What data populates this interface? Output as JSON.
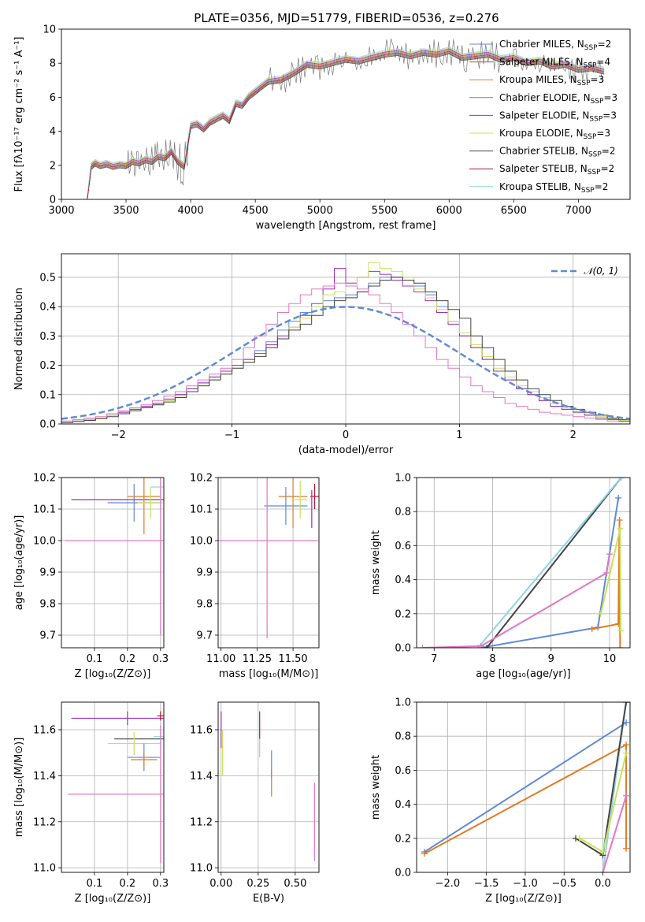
{
  "figure": {
    "title": "PLATE=0356, MJD=51779, FIBERID=0536, z=0.276"
  },
  "colors": {
    "Chabrier MILES": "#5f8ad6",
    "Salpeter MILES": "#a05a2c",
    "Kroupa MILES": "#e07b25",
    "Chabrier ELODIE": "#7a7a7a",
    "Salpeter ELODIE": "#9a2fb8",
    "Kroupa ELODIE": "#c9e05a",
    "Chabrier STELIB": "#444444",
    "Salpeter STELIB": "#b5172a",
    "Kroupa STELIB": "#8fd3e8",
    "pink": "#e377c2",
    "normal": "#5f8ad6"
  },
  "chart_data": [
    {
      "id": "spectrum",
      "type": "line",
      "title": "PLATE=0356, MJD=51779, FIBERID=0536, z=0.276",
      "xlabel": "wavelength [Angstrom, rest frame]",
      "ylabel": "Flux [fλ10⁻¹⁷ erg cm⁻² s⁻¹ A⁻¹]",
      "xlim": [
        3000,
        7400
      ],
      "ylim": [
        0,
        10
      ],
      "xticks": [
        "3000",
        "3500",
        "4000",
        "4500",
        "5000",
        "5500",
        "6000",
        "6500",
        "7000"
      ],
      "yticks": [
        "0",
        "2",
        "4",
        "6",
        "8",
        "10"
      ],
      "legend_position": "top-right",
      "data_spectrum": {
        "name": "data",
        "x": [
          3200,
          3230,
          3260,
          3300,
          3350,
          3400,
          3450,
          3500,
          3550,
          3600,
          3650,
          3700,
          3750,
          3800,
          3850,
          3900,
          3950,
          4000,
          4050,
          4100,
          4150,
          4200,
          4250,
          4300,
          4350,
          4400,
          4450,
          4500,
          4600,
          4700,
          4800,
          4900,
          5000,
          5100,
          5200,
          5300,
          5400,
          5500,
          5600,
          5700,
          5800,
          5900,
          6000,
          6100,
          6200,
          6300,
          6400,
          6500,
          6600,
          6700,
          6800,
          6900,
          7000,
          7100,
          7200
        ],
        "y": [
          0,
          1.9,
          2.1,
          1.95,
          2.05,
          1.9,
          2.0,
          1.95,
          2.2,
          2.1,
          2.3,
          2.2,
          2.5,
          2.4,
          2.8,
          2.2,
          1.9,
          4.3,
          4.4,
          4.1,
          4.5,
          4.7,
          4.9,
          4.6,
          5.6,
          5.5,
          6.0,
          6.3,
          6.9,
          7.0,
          7.4,
          7.9,
          7.8,
          8.0,
          8.2,
          8.1,
          8.3,
          8.5,
          8.6,
          8.4,
          8.6,
          8.5,
          8.7,
          8.3,
          8.4,
          8.5,
          8.2,
          8.3,
          8.0,
          8.1,
          7.8,
          7.9,
          7.6,
          7.7,
          7.5
        ]
      },
      "models": [
        {
          "name": "Chabrier MILES, N_SSP=2",
          "offset": 0.05
        },
        {
          "name": "Salpeter MILES, N_SSP=4",
          "offset": -0.1
        },
        {
          "name": "Kroupa MILES, N_SSP=3",
          "offset": 0.1
        },
        {
          "name": "Chabrier ELODIE, N_SSP=3",
          "offset": -0.05
        },
        {
          "name": "Salpeter ELODIE, N_SSP=3",
          "offset": 0.15
        },
        {
          "name": "Kroupa ELODIE, N_SSP=3",
          "offset": 0.2
        },
        {
          "name": "Chabrier STELIB, N_SSP=2",
          "offset": -0.15
        },
        {
          "name": "Salpeter STELIB, N_SSP=2",
          "offset": 0.0
        },
        {
          "name": "Kroupa STELIB, N_SSP=2",
          "offset": 0.25
        }
      ],
      "legend_labels": [
        "Chabrier MILES, N",
        "Salpeter MILES, N",
        "Kroupa MILES, N",
        "Chabrier ELODIE, N",
        "Salpeter ELODIE, N",
        "Kroupa ELODIE, N",
        "Chabrier STELIB, N",
        "Salpeter STELIB, N",
        "Kroupa STELIB, N"
      ],
      "legend_sub": "SSP",
      "legend_counts": [
        "=2",
        "=4",
        "=3",
        "=3",
        "=3",
        "=3",
        "=2",
        "=2",
        "=2"
      ]
    },
    {
      "id": "residuals",
      "type": "bar",
      "xlabel": "(data-model)/error",
      "ylabel": "Normed distribution",
      "xlim": [
        -2.5,
        2.5
      ],
      "ylim": [
        0,
        0.58
      ],
      "xticks": [
        "−2",
        "−1",
        "0",
        "1",
        "2"
      ],
      "yticks": [
        "0.0",
        "0.1",
        "0.2",
        "0.3",
        "0.4",
        "0.5"
      ],
      "legend_position": "top-right",
      "legend_label": "𝒩(0, 1)",
      "bins": [
        -2.5,
        -2.4,
        -2.3,
        -2.2,
        -2.1,
        -2.0,
        -1.9,
        -1.8,
        -1.7,
        -1.6,
        -1.5,
        -1.4,
        -1.3,
        -1.2,
        -1.1,
        -1.0,
        -0.9,
        -0.8,
        -0.7,
        -0.6,
        -0.5,
        -0.4,
        -0.3,
        -0.2,
        -0.1,
        0.0,
        0.1,
        0.2,
        0.3,
        0.4,
        0.5,
        0.6,
        0.7,
        0.8,
        0.9,
        1.0,
        1.1,
        1.2,
        1.3,
        1.4,
        1.5,
        1.6,
        1.7,
        1.8,
        1.9,
        2.0,
        2.1,
        2.2,
        2.3,
        2.4
      ],
      "series": [
        {
          "name": "Chabrier MILES",
          "values": [
            0.005,
            0.01,
            0.015,
            0.02,
            0.03,
            0.04,
            0.05,
            0.06,
            0.07,
            0.08,
            0.1,
            0.12,
            0.14,
            0.16,
            0.18,
            0.2,
            0.22,
            0.25,
            0.28,
            0.32,
            0.35,
            0.38,
            0.4,
            0.42,
            0.43,
            0.44,
            0.45,
            0.48,
            0.5,
            0.5,
            0.49,
            0.47,
            0.44,
            0.4,
            0.35,
            0.3,
            0.26,
            0.22,
            0.18,
            0.15,
            0.12,
            0.1,
            0.08,
            0.06,
            0.05,
            0.04,
            0.03,
            0.02,
            0.015,
            0.01
          ]
        },
        {
          "name": "Salpeter ELODIE",
          "values": [
            0.005,
            0.01,
            0.015,
            0.02,
            0.03,
            0.04,
            0.05,
            0.06,
            0.07,
            0.085,
            0.1,
            0.12,
            0.14,
            0.16,
            0.18,
            0.2,
            0.22,
            0.24,
            0.27,
            0.3,
            0.33,
            0.37,
            0.41,
            0.46,
            0.53,
            0.48,
            0.5,
            0.52,
            0.51,
            0.49,
            0.47,
            0.45,
            0.42,
            0.38,
            0.34,
            0.3,
            0.26,
            0.22,
            0.18,
            0.15,
            0.12,
            0.1,
            0.08,
            0.06,
            0.05,
            0.04,
            0.03,
            0.02,
            0.015,
            0.01
          ]
        },
        {
          "name": "Kroupa ELODIE",
          "values": [
            0.005,
            0.01,
            0.015,
            0.02,
            0.03,
            0.035,
            0.045,
            0.055,
            0.065,
            0.08,
            0.095,
            0.11,
            0.13,
            0.15,
            0.17,
            0.19,
            0.21,
            0.23,
            0.26,
            0.29,
            0.33,
            0.36,
            0.4,
            0.44,
            0.45,
            0.47,
            0.5,
            0.55,
            0.53,
            0.52,
            0.5,
            0.46,
            0.43,
            0.39,
            0.35,
            0.31,
            0.27,
            0.23,
            0.19,
            0.16,
            0.13,
            0.11,
            0.09,
            0.07,
            0.055,
            0.045,
            0.035,
            0.025,
            0.018,
            0.012
          ]
        },
        {
          "name": "Chabrier STELIB",
          "values": [
            0.005,
            0.008,
            0.012,
            0.018,
            0.025,
            0.035,
            0.045,
            0.055,
            0.065,
            0.075,
            0.09,
            0.11,
            0.13,
            0.15,
            0.17,
            0.19,
            0.21,
            0.23,
            0.26,
            0.29,
            0.32,
            0.34,
            0.37,
            0.4,
            0.42,
            0.43,
            0.45,
            0.47,
            0.49,
            0.5,
            0.49,
            0.48,
            0.45,
            0.42,
            0.39,
            0.36,
            0.3,
            0.26,
            0.22,
            0.18,
            0.15,
            0.12,
            0.1,
            0.08,
            0.06,
            0.05,
            0.04,
            0.03,
            0.02,
            0.015
          ]
        },
        {
          "name": "pink",
          "values": [
            0.01,
            0.015,
            0.02,
            0.025,
            0.035,
            0.045,
            0.055,
            0.065,
            0.08,
            0.095,
            0.11,
            0.13,
            0.15,
            0.17,
            0.19,
            0.22,
            0.26,
            0.3,
            0.34,
            0.38,
            0.41,
            0.44,
            0.46,
            0.47,
            0.48,
            0.47,
            0.46,
            0.44,
            0.41,
            0.38,
            0.34,
            0.3,
            0.26,
            0.22,
            0.19,
            0.16,
            0.13,
            0.11,
            0.09,
            0.07,
            0.06,
            0.05,
            0.04,
            0.035,
            0.03,
            0.025,
            0.02,
            0.015,
            0.01,
            0.008
          ]
        }
      ],
      "normal_curve": {
        "name": "N(0,1)",
        "mu": 0,
        "sigma": 1
      }
    },
    {
      "id": "age_vs_Z",
      "type": "scatter",
      "xlabel": "Z [log₁₀(Z/Z⊙)]",
      "ylabel": "age  [log₁₀(age/yr)]",
      "xlim": [
        0.0,
        0.31
      ],
      "ylim": [
        9.66,
        10.2
      ],
      "xticks": [
        "0.1",
        "0.2",
        "0.3"
      ],
      "yticks": [
        "9.7",
        "9.8",
        "9.9",
        "10.0",
        "10.1",
        "10.2"
      ],
      "points": [
        {
          "name": "Chabrier MILES",
          "x": 0.22,
          "y": 10.12,
          "xerr": 0.08,
          "yerr": 0.06
        },
        {
          "name": "Salpeter ELODIE",
          "x": 0.2,
          "y": 10.13,
          "xerr": 0.17,
          "yerr": 0.0
        },
        {
          "name": "Kroupa MILES",
          "x": 0.25,
          "y": 10.14,
          "xerr": 0.05,
          "yerr": 0.12
        },
        {
          "name": "Kroupa ELODIE",
          "x": 0.27,
          "y": 10.12,
          "xerr": 0.04,
          "yerr": 0.05
        },
        {
          "name": "Kroupa STELIB",
          "x": 0.3,
          "y": 10.17,
          "xerr": 0.03,
          "yerr": 0.08
        },
        {
          "name": "pink",
          "x": 0.3,
          "y": 10.0,
          "xerr": 0.29,
          "yerr": 0.3
        }
      ]
    },
    {
      "id": "age_vs_mass",
      "type": "scatter",
      "xlabel": "mass [log₁₀(M/M⊙)]",
      "ylabel": "",
      "xlim": [
        10.98,
        11.68
      ],
      "ylim": [
        9.66,
        10.2
      ],
      "xticks": [
        "11.00",
        "11.25",
        "11.50"
      ],
      "yticks": [
        "9.7",
        "9.8",
        "9.9",
        "10.0",
        "10.1",
        "10.2"
      ],
      "points": [
        {
          "name": "Chabrier MILES",
          "x": 11.45,
          "y": 10.11,
          "xerr": 0.15,
          "yerr": 0.06
        },
        {
          "name": "Kroupa MILES",
          "x": 11.5,
          "y": 10.14,
          "xerr": 0.1,
          "yerr": 0.1
        },
        {
          "name": "Kroupa ELODIE",
          "x": 11.55,
          "y": 10.13,
          "xerr": 0.05,
          "yerr": 0.06
        },
        {
          "name": "Salpeter STELIB",
          "x": 11.65,
          "y": 10.14,
          "xerr": 0.03,
          "yerr": 0.04
        },
        {
          "name": "Salpeter ELODIE",
          "x": 11.63,
          "y": 10.1,
          "xerr": 0.0,
          "yerr": 0.06
        },
        {
          "name": "pink",
          "x": 11.32,
          "y": 10.0,
          "xerr": 0.35,
          "yerr": 0.31
        }
      ]
    },
    {
      "id": "weight_vs_age",
      "type": "line",
      "xlabel": "age  [log₁₀(age/yr)]",
      "ylabel": "mass weight",
      "xlim": [
        6.7,
        10.35
      ],
      "ylim": [
        0,
        1.0
      ],
      "xticks": [
        "7",
        "8",
        "9",
        "10"
      ],
      "yticks": [
        "0.0",
        "0.2",
        "0.4",
        "0.6",
        "0.8",
        "1.0"
      ],
      "series": [
        {
          "name": "Chabrier MILES",
          "x": [
            7.8,
            9.8,
            10.15
          ],
          "y": [
            0.0,
            0.12,
            0.88
          ]
        },
        {
          "name": "Kroupa MILES",
          "x": [
            9.7,
            10.15,
            10.17,
            10.18
          ],
          "y": [
            0.11,
            0.14,
            0.75,
            0.0
          ]
        },
        {
          "name": "Chabrier STELIB",
          "x": [
            7.9,
            10.2
          ],
          "y": [
            0.0,
            1.0
          ]
        },
        {
          "name": "Kroupa STELIB",
          "x": [
            7.75,
            10.2
          ],
          "y": [
            0.0,
            1.0
          ]
        },
        {
          "name": "pink",
          "x": [
            6.8,
            7.8,
            9.95,
            10.0
          ],
          "y": [
            0.0,
            0.01,
            0.44,
            0.55
          ]
        },
        {
          "name": "Kroupa ELODIE",
          "x": [
            9.85,
            10.18,
            10.19
          ],
          "y": [
            0.2,
            0.7,
            0.1
          ]
        }
      ]
    },
    {
      "id": "mass_vs_Z",
      "type": "scatter",
      "xlabel": "Z [log₁₀(Z/Z⊙)]",
      "ylabel": "mass [log₁₀(M/M⊙)]",
      "xlim": [
        0.0,
        0.31
      ],
      "ylim": [
        10.98,
        11.72
      ],
      "xticks": [
        "0.1",
        "0.2",
        "0.3"
      ],
      "yticks": [
        "11.0",
        "11.2",
        "11.4",
        "11.6"
      ],
      "points": [
        {
          "name": "Salpeter ELODIE",
          "x": 0.2,
          "y": 11.65,
          "xerr": 0.17,
          "yerr": 0.03
        },
        {
          "name": "Salpeter STELIB",
          "x": 0.3,
          "y": 11.66,
          "xerr": 0.01,
          "yerr": 0.02
        },
        {
          "name": "Chabrier STELIB",
          "x": 0.28,
          "y": 11.56,
          "xerr": 0.12,
          "yerr": 0.0
        },
        {
          "name": "Kroupa ELODIE",
          "x": 0.22,
          "y": 11.54,
          "xerr": 0.08,
          "yerr": 0.05
        },
        {
          "name": "Chabrier MILES",
          "x": 0.25,
          "y": 11.48,
          "xerr": 0.05,
          "yerr": 0.06
        },
        {
          "name": "Kroupa MILES",
          "x": 0.25,
          "y": 11.47,
          "xerr": 0.04,
          "yerr": 0.03
        },
        {
          "name": "Kroupa STELIB",
          "x": 0.3,
          "y": 11.57,
          "xerr": 0.02,
          "yerr": 0.06
        },
        {
          "name": "pink",
          "x": 0.3,
          "y": 11.32,
          "xerr": 0.28,
          "yerr": 0.3
        }
      ]
    },
    {
      "id": "mass_vs_EBV",
      "type": "scatter",
      "xlabel": "E(B-V)",
      "ylabel": "",
      "xlim": [
        -0.02,
        0.66
      ],
      "ylim": [
        10.98,
        11.72
      ],
      "xticks": [
        "0.00",
        "0.25",
        "0.50"
      ],
      "yticks": [
        "11.0",
        "11.2",
        "11.4",
        "11.6"
      ],
      "points": [
        {
          "name": "Salpeter ELODIE",
          "x": 0.0,
          "y": 11.6,
          "xerr": 0.0,
          "yerr": 0.08
        },
        {
          "name": "Kroupa ELODIE",
          "x": 0.01,
          "y": 11.5,
          "xerr": 0.0,
          "yerr": 0.1
        },
        {
          "name": "Salpeter STELIB",
          "x": 0.26,
          "y": 11.62,
          "xerr": 0.0,
          "yerr": 0.06
        },
        {
          "name": "Kroupa STELIB",
          "x": 0.26,
          "y": 11.52,
          "xerr": 0.0,
          "yerr": 0.04
        },
        {
          "name": "Chabrier MILES",
          "x": 0.34,
          "y": 11.45,
          "xerr": 0.0,
          "yerr": 0.06
        },
        {
          "name": "Kroupa MILES",
          "x": 0.34,
          "y": 11.37,
          "xerr": 0.0,
          "yerr": 0.06
        },
        {
          "name": "pink",
          "x": 0.63,
          "y": 11.2,
          "xerr": 0.0,
          "yerr": 0.17
        }
      ]
    },
    {
      "id": "weight_vs_Z",
      "type": "line",
      "xlabel": "Z [log₁₀(Z/Z⊙)]",
      "ylabel": "mass weight",
      "xlim": [
        -2.4,
        0.35
      ],
      "ylim": [
        0,
        1.0
      ],
      "xticks": [
        "−2.0",
        "−1.5",
        "−1.0",
        "−0.5",
        "0.0"
      ],
      "yticks": [
        "0.0",
        "0.2",
        "0.4",
        "0.6",
        "0.8",
        "1.0"
      ],
      "series": [
        {
          "name": "Chabrier MILES",
          "x": [
            -2.3,
            0.3
          ],
          "y": [
            0.12,
            0.88
          ]
        },
        {
          "name": "Kroupa MILES",
          "x": [
            -2.3,
            0.3,
            0.3
          ],
          "y": [
            0.11,
            0.75,
            0.14
          ]
        },
        {
          "name": "Kroupa STELIB",
          "x": [
            0.0,
            0.3
          ],
          "y": [
            0.0,
            1.0
          ]
        },
        {
          "name": "Chabrier STELIB",
          "x": [
            -0.35,
            0.0,
            0.3
          ],
          "y": [
            0.2,
            0.1,
            1.0
          ]
        },
        {
          "name": "Kroupa ELODIE",
          "x": [
            -0.3,
            0.0,
            0.3
          ],
          "y": [
            0.2,
            0.12,
            0.7
          ]
        },
        {
          "name": "pink",
          "x": [
            0.0,
            0.3
          ],
          "y": [
            0.0,
            0.45
          ]
        }
      ]
    }
  ]
}
